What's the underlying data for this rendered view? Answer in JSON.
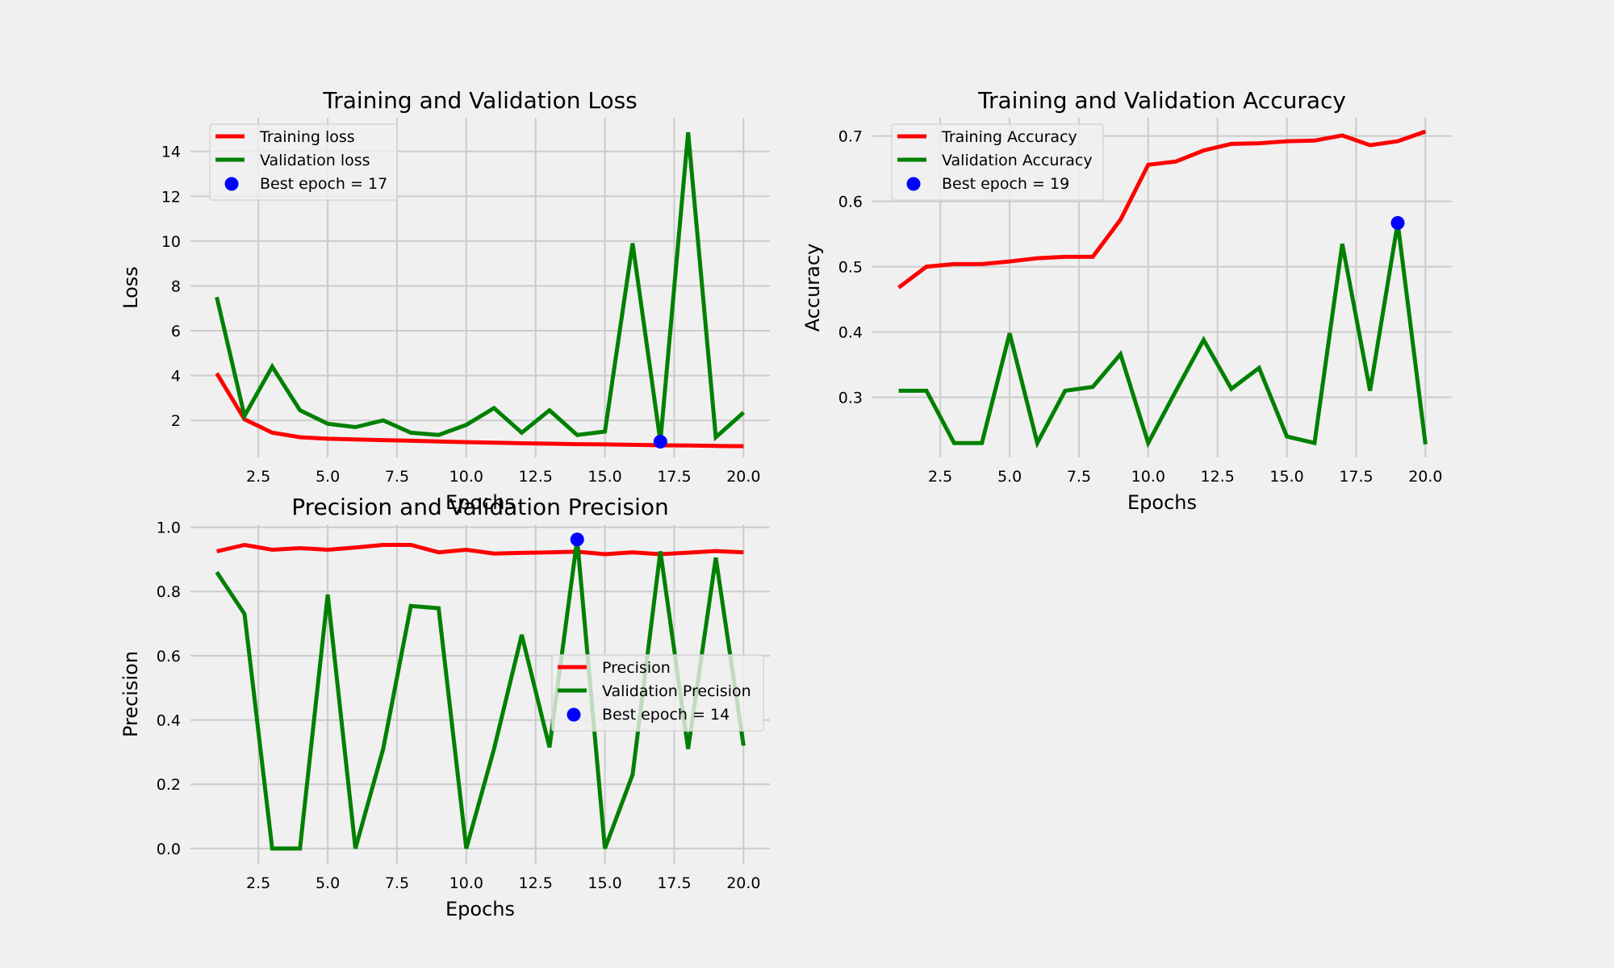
{
  "chart_data": [
    {
      "type": "line",
      "title": "Training and Validation Loss",
      "xlabel": "Epochs",
      "ylabel": "Loss",
      "xlim": [
        0.05,
        20.95
      ],
      "ylim": [
        0.35,
        15.5
      ],
      "xticks": [
        2.5,
        5.0,
        7.5,
        10.0,
        12.5,
        15.0,
        17.5,
        20.0
      ],
      "xtick_labels": [
        "2.5",
        "5.0",
        "7.5",
        "10.0",
        "12.5",
        "15.0",
        "17.5",
        "20.0"
      ],
      "yticks": [
        2,
        4,
        6,
        8,
        10,
        12,
        14
      ],
      "ytick_labels": [
        "2",
        "4",
        "6",
        "8",
        "10",
        "12",
        "14"
      ],
      "grid": true,
      "legend_position": "upper-left",
      "x": [
        1,
        2,
        3,
        4,
        5,
        6,
        7,
        8,
        9,
        10,
        11,
        12,
        13,
        14,
        15,
        16,
        17,
        18,
        19,
        20
      ],
      "series": [
        {
          "name": "Training loss",
          "color": "#ff0000",
          "values": [
            4.1,
            2.05,
            1.45,
            1.25,
            1.18,
            1.15,
            1.12,
            1.09,
            1.06,
            1.03,
            1.01,
            0.98,
            0.96,
            0.94,
            0.93,
            0.91,
            0.89,
            0.88,
            0.86,
            0.85
          ]
        },
        {
          "name": "Validation loss",
          "color": "#008000",
          "values": [
            7.5,
            2.2,
            4.4,
            2.45,
            1.85,
            1.7,
            2.0,
            1.45,
            1.35,
            1.8,
            2.55,
            1.45,
            2.45,
            1.35,
            1.5,
            9.9,
            1.05,
            14.85,
            1.25,
            2.35
          ]
        }
      ],
      "best_point": {
        "label": "Best epoch = 17",
        "x": 17,
        "y": 1.05,
        "color": "#0000ff"
      }
    },
    {
      "type": "line",
      "title": "Training and Validation Accuracy",
      "xlabel": "Epochs",
      "ylabel": "Accuracy",
      "xlim": [
        0.05,
        20.95
      ],
      "ylim": [
        0.208,
        0.728
      ],
      "xticks": [
        2.5,
        5.0,
        7.5,
        10.0,
        12.5,
        15.0,
        17.5,
        20.0
      ],
      "xtick_labels": [
        "2.5",
        "5.0",
        "7.5",
        "10.0",
        "12.5",
        "15.0",
        "17.5",
        "20.0"
      ],
      "yticks": [
        0.3,
        0.4,
        0.5,
        0.6,
        0.7
      ],
      "ytick_labels": [
        "0.3",
        "0.4",
        "0.5",
        "0.6",
        "0.7"
      ],
      "grid": true,
      "legend_position": "upper-left",
      "x": [
        1,
        2,
        3,
        4,
        5,
        6,
        7,
        8,
        9,
        10,
        11,
        12,
        13,
        14,
        15,
        16,
        17,
        18,
        19,
        20
      ],
      "series": [
        {
          "name": "Training Accuracy",
          "color": "#ff0000",
          "values": [
            0.468,
            0.5,
            0.504,
            0.504,
            0.508,
            0.513,
            0.515,
            0.515,
            0.572,
            0.656,
            0.661,
            0.678,
            0.688,
            0.689,
            0.692,
            0.693,
            0.701,
            0.686,
            0.692,
            0.707
          ]
        },
        {
          "name": "Validation Accuracy",
          "color": "#008000",
          "values": [
            0.31,
            0.31,
            0.23,
            0.23,
            0.398,
            0.23,
            0.31,
            0.316,
            0.366,
            0.23,
            0.31,
            0.388,
            0.313,
            0.345,
            0.24,
            0.23,
            0.535,
            0.31,
            0.567,
            0.228
          ]
        }
      ],
      "best_point": {
        "label": "Best epoch = 19",
        "x": 19,
        "y": 0.567,
        "color": "#0000ff"
      }
    },
    {
      "type": "line",
      "title": "Precision and Validation Precision",
      "xlabel": "Epochs",
      "ylabel": "Precision",
      "xlim": [
        0.05,
        20.95
      ],
      "ylim": [
        -0.048,
        1.009
      ],
      "xticks": [
        2.5,
        5.0,
        7.5,
        10.0,
        12.5,
        15.0,
        17.5,
        20.0
      ],
      "xtick_labels": [
        "2.5",
        "5.0",
        "7.5",
        "10.0",
        "12.5",
        "15.0",
        "17.5",
        "20.0"
      ],
      "yticks": [
        0.0,
        0.2,
        0.4,
        0.6,
        0.8,
        1.0
      ],
      "ytick_labels": [
        "0.0",
        "0.2",
        "0.4",
        "0.6",
        "0.8",
        "1.0"
      ],
      "grid": true,
      "legend_position": "center-right",
      "x": [
        1,
        2,
        3,
        4,
        5,
        6,
        7,
        8,
        9,
        10,
        11,
        12,
        13,
        14,
        15,
        16,
        17,
        18,
        19,
        20
      ],
      "series": [
        {
          "name": "Precision",
          "color": "#ff0000",
          "values": [
            0.925,
            0.945,
            0.93,
            0.935,
            0.93,
            0.937,
            0.945,
            0.945,
            0.922,
            0.93,
            0.918,
            0.92,
            0.922,
            0.924,
            0.916,
            0.922,
            0.916,
            0.921,
            0.926,
            0.922
          ]
        },
        {
          "name": "Validation Precision",
          "color": "#008000",
          "values": [
            0.86,
            0.73,
            0.0,
            0.0,
            0.79,
            0.0,
            0.31,
            0.755,
            0.748,
            0.0,
            0.31,
            0.665,
            0.315,
            0.962,
            0.0,
            0.23,
            0.925,
            0.31,
            0.905,
            0.32
          ]
        }
      ],
      "best_point": {
        "label": "Best epoch = 14",
        "x": 14,
        "y": 0.962,
        "color": "#0000ff"
      }
    }
  ]
}
